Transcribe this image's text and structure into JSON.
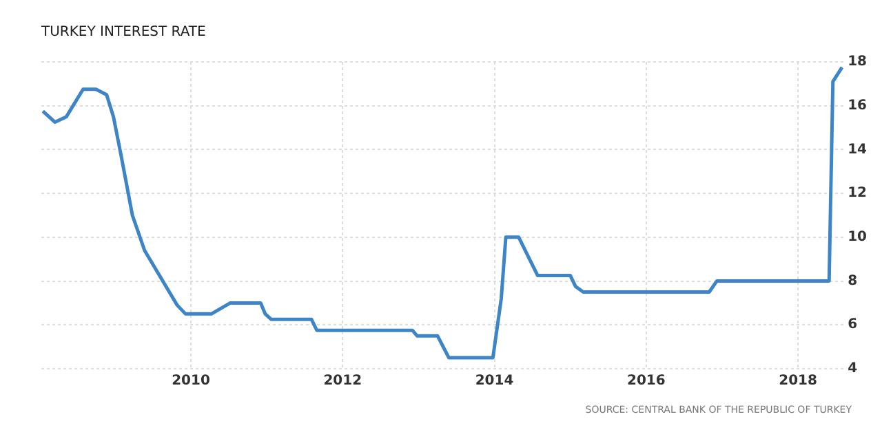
{
  "chart_data": {
    "type": "line",
    "title": "TURKEY INTEREST RATE",
    "annotations": [
      "SOURCE: CENTRAL BANK OF THE REPUBLIC OF TURKEY"
    ],
    "x": [
      2008.05,
      2008.21,
      2008.36,
      2008.58,
      2008.75,
      2008.89,
      2008.98,
      2009.08,
      2009.23,
      2009.39,
      2009.63,
      2009.82,
      2009.93,
      2010.27,
      2010.52,
      2010.92,
      2010.98,
      2011.06,
      2011.59,
      2011.66,
      2012.92,
      2012.98,
      2013.25,
      2013.4,
      2013.98,
      2014.09,
      2014.15,
      2014.32,
      2014.57,
      2015.0,
      2015.07,
      2015.17,
      2016.83,
      2016.93,
      2018.41,
      2018.46,
      2018.58
    ],
    "series": [
      {
        "color": "#3d85c6",
        "values": [
          15.75,
          15.25,
          15.5,
          16.75,
          16.75,
          16.5,
          15.5,
          13.75,
          11,
          9.4,
          8,
          6.9,
          6.5,
          6.5,
          7,
          7,
          6.5,
          6.25,
          6.25,
          5.75,
          5.75,
          5.5,
          5.5,
          4.5,
          4.5,
          7.2,
          10,
          10,
          8.25,
          8.25,
          7.75,
          7.5,
          7.5,
          8,
          8,
          17.1,
          17.75
        ]
      }
    ],
    "xlim": [
      2008.03,
      2018.6
    ],
    "xticks": [
      2010,
      2012,
      2014,
      2016,
      2018
    ],
    "ylim": [
      4,
      18
    ],
    "yticks": [
      4,
      6,
      8,
      10,
      12,
      14,
      16,
      18
    ],
    "grid": true,
    "legend": false,
    "marker": "none",
    "line_style": "solid"
  }
}
